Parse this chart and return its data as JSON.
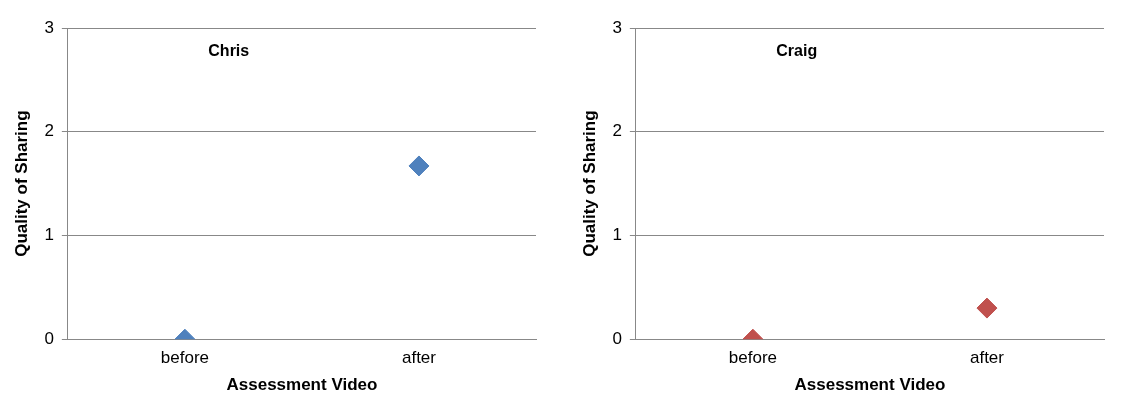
{
  "chart_data": [
    {
      "type": "scatter",
      "title": "Chris",
      "xlabel": "Assessment Video",
      "ylabel": "Quality of Sharing",
      "categories": [
        "before",
        "after"
      ],
      "series": [
        {
          "color": "#4f81bd",
          "values": [
            0,
            1.67
          ]
        }
      ],
      "ylim": [
        0,
        3
      ],
      "yticks": [
        0,
        1,
        2,
        3
      ],
      "grid": "y",
      "marker": "diamond"
    },
    {
      "type": "scatter",
      "title": "Craig",
      "xlabel": "Assessment Video",
      "ylabel": "Quality of Sharing",
      "categories": [
        "before",
        "after"
      ],
      "series": [
        {
          "color": "#c0504d",
          "values": [
            0,
            0.3
          ]
        }
      ],
      "ylim": [
        0,
        3
      ],
      "yticks": [
        0,
        1,
        2,
        3
      ],
      "grid": "y",
      "marker": "diamond"
    }
  ]
}
